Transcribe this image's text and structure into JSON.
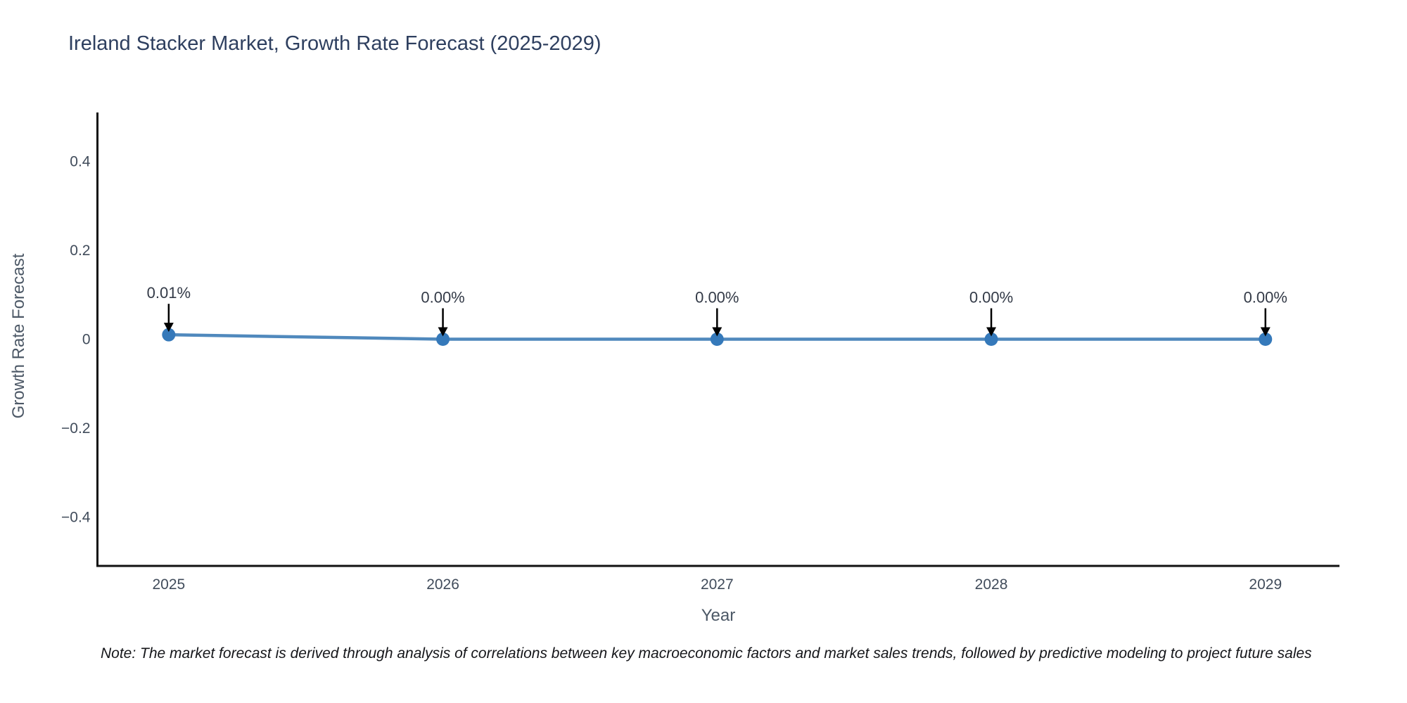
{
  "header": {
    "title": "Ireland Stacker Market, Growth Rate Forecast (2025-2029)"
  },
  "footer": {
    "note": "Note: The market forecast is derived through analysis of correlations between key macroeconomic factors and market sales trends, followed by predictive modeling to project future sales"
  },
  "chart_data": {
    "type": "line",
    "title": "Ireland Stacker Market, Growth Rate Forecast (2025-2029)",
    "xlabel": "Year",
    "ylabel": "Growth Rate Forecast",
    "x": [
      2025,
      2026,
      2027,
      2028,
      2029
    ],
    "series": [
      {
        "name": "Growth Rate Forecast",
        "values": [
          0.01,
          0.0,
          0.0,
          0.0,
          0.0
        ],
        "labels": [
          "0.01%",
          "0.00%",
          "0.00%",
          "0.00%",
          "0.00%"
        ]
      }
    ],
    "xlim": [
      2024.74,
      2029.27
    ],
    "ylim": [
      -0.51,
      0.51
    ],
    "xticks": {
      "values": [
        2025,
        2026,
        2027,
        2028,
        2029
      ],
      "labels": [
        "2025",
        "2026",
        "2027",
        "2028",
        "2029"
      ]
    },
    "yticks": {
      "values": [
        0.4,
        0.2,
        0,
        -0.2,
        -0.4
      ],
      "labels": [
        "0.4",
        "0.2",
        "0",
        "−0.2",
        "−0.4"
      ]
    },
    "grid": false,
    "legend": false,
    "annotations_have_arrows": true,
    "colors": {
      "line": "#5089bd",
      "marker": "#3579ba",
      "arrow": "#000000",
      "axis": "#111111",
      "tick_label": "#414c5b",
      "axis_label": "#4c5866",
      "annotation": "#333a47",
      "title": "#2e3f5f",
      "background": "#ffffff"
    }
  }
}
